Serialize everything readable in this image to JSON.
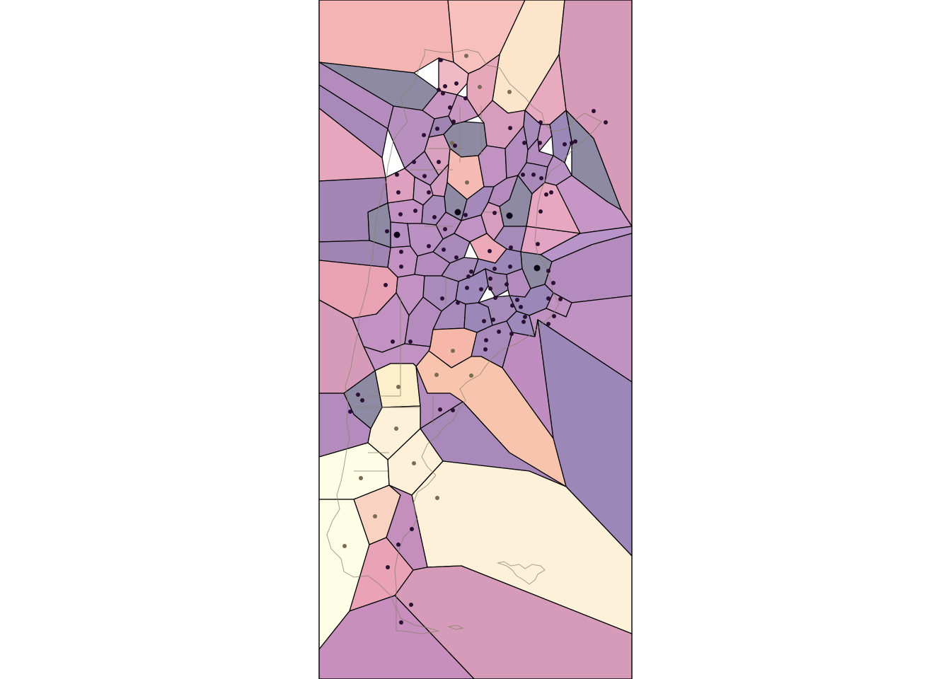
{
  "figure": {
    "kind": "voronoi-map",
    "has_title": false,
    "has_axes": false,
    "has_legend": false
  },
  "palette": {
    "background": "#ffffff",
    "panel_border": "#000000",
    "cell_edge": "#000000",
    "outline": "#8a7f6a",
    "density_colors": {
      "darkest": "#8e8aa3",
      "dark_purple": "#9b87b8",
      "purple": "#b48bbd",
      "mauve": "#c88fbe",
      "pink": "#d69bb9",
      "rose": "#e6a0b0",
      "salmon": "#f4b4b3",
      "peach": "#f9c4ad",
      "cream": "#fdeecc",
      "light_yellow": "#fefde6"
    },
    "dot_dark": "#2b0f33",
    "dot_light": "#7a6a52"
  }
}
